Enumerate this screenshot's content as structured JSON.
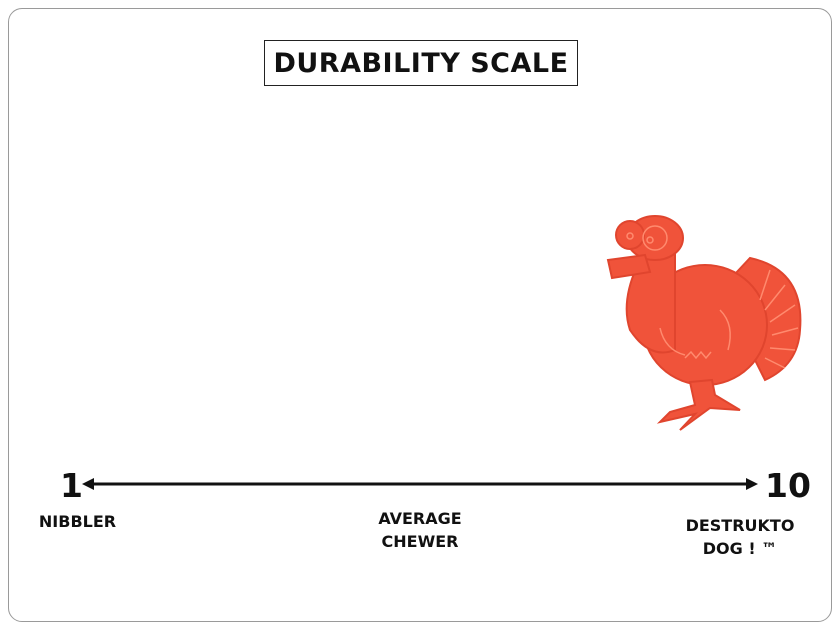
{
  "title": "DURABILITY SCALE",
  "scale": {
    "min_label": "1",
    "max_label": "10",
    "min_caption": "NIBBLER",
    "mid_caption_line1": "AVERAGE",
    "mid_caption_line2": "CHEWER",
    "max_caption_line1": "DESTRUKTO",
    "max_caption_line2": "DOG ! ™",
    "rating": 10
  },
  "product_image": {
    "icon": "turkey-toy",
    "color": "#f0533a"
  }
}
